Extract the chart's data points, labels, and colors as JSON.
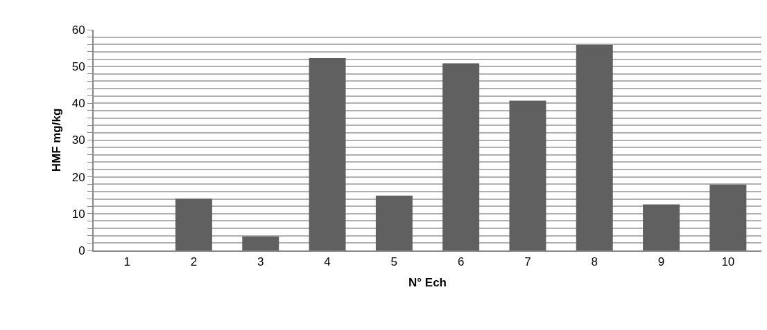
{
  "chart_data": {
    "type": "bar",
    "xlabel": "N° Ech",
    "ylabel": "HMF mg/kg",
    "categories": [
      "1",
      "2",
      "3",
      "4",
      "5",
      "6",
      "7",
      "8",
      "9",
      "10"
    ],
    "values": [
      0,
      14.1,
      3.8,
      52.3,
      14.9,
      50.9,
      40.7,
      55.9,
      12.5,
      17.9
    ],
    "color": "#606060",
    "ylim": [
      0,
      60
    ],
    "yticks": [
      0,
      {
        "value": 2,
        "label": null
      },
      {
        "value": 4,
        "label": null
      },
      {
        "value": 6,
        "label": null
      },
      {
        "value": 8,
        "label": null
      },
      10,
      {
        "value": 12,
        "label": null
      },
      {
        "value": 14,
        "label": null
      },
      {
        "value": 16,
        "label": null
      },
      {
        "value": 18,
        "label": null
      },
      20,
      {
        "value": 22,
        "label": null
      },
      {
        "value": 24,
        "label": null
      },
      {
        "value": 26,
        "label": null
      },
      {
        "value": 28,
        "label": null
      },
      30,
      {
        "value": 32,
        "label": null
      },
      {
        "value": 34,
        "label": null
      },
      {
        "value": 36,
        "label": null
      },
      {
        "value": 38,
        "label": null
      },
      40,
      {
        "value": 42,
        "label": null
      },
      {
        "value": 44,
        "label": null
      },
      {
        "value": 46,
        "label": null
      },
      {
        "value": 48,
        "label": null
      },
      50,
      {
        "value": 52,
        "label": null
      },
      {
        "value": 54,
        "label": null
      },
      {
        "value": 56,
        "label": null
      },
      {
        "value": 58,
        "label": null
      },
      60
    ],
    "grid": "y",
    "legend": false
  }
}
